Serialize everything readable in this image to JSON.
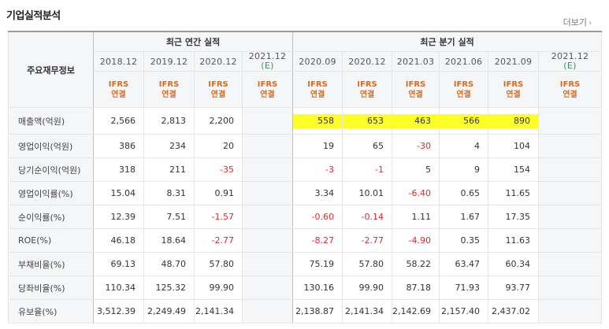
{
  "title": "기업실적분석",
  "more_label": "더보기",
  "header": {
    "corner": "주요재무정보",
    "annual_group": "최근 연간 실적",
    "quarter_group": "최근 분기 실적",
    "periods": [
      {
        "label": "2018.12",
        "est": ""
      },
      {
        "label": "2019.12",
        "est": ""
      },
      {
        "label": "2020.12",
        "est": ""
      },
      {
        "label": "2021.12",
        "est": "(E)"
      },
      {
        "label": "2020.09",
        "est": ""
      },
      {
        "label": "2020.12",
        "est": ""
      },
      {
        "label": "2021.03",
        "est": ""
      },
      {
        "label": "2021.06",
        "est": ""
      },
      {
        "label": "2021.09",
        "est": ""
      },
      {
        "label": "2021.12",
        "est": "(E)"
      }
    ],
    "basis_line1": "IFRS",
    "basis_line2": "연결"
  },
  "rows": [
    {
      "label": "매출액(억원)",
      "values": [
        "2,566",
        "2,813",
        "2,200",
        "",
        "558",
        "653",
        "463",
        "566",
        "890",
        ""
      ]
    },
    {
      "label": "영업이익(억원)",
      "values": [
        "386",
        "234",
        "20",
        "",
        "19",
        "65",
        "-30",
        "4",
        "104",
        ""
      ]
    },
    {
      "label": "당기순이익(억원)",
      "values": [
        "318",
        "211",
        "-35",
        "",
        "-3",
        "-1",
        "5",
        "9",
        "154",
        ""
      ]
    },
    {
      "label": "영업이익률(%)",
      "values": [
        "15.04",
        "8.31",
        "0.91",
        "",
        "3.34",
        "10.01",
        "-6.40",
        "0.65",
        "11.65",
        ""
      ]
    },
    {
      "label": "순이익률(%)",
      "values": [
        "12.39",
        "7.51",
        "-1.57",
        "",
        "-0.60",
        "-0.14",
        "1.11",
        "1.67",
        "17.35",
        ""
      ]
    },
    {
      "label": "ROE(%)",
      "values": [
        "46.18",
        "18.64",
        "-2.77",
        "",
        "-8.27",
        "-2.77",
        "-4.90",
        "0.35",
        "11.63",
        ""
      ]
    },
    {
      "label": "부채비율(%)",
      "values": [
        "69.13",
        "48.70",
        "57.80",
        "",
        "75.19",
        "57.80",
        "58.22",
        "63.47",
        "60.34",
        ""
      ]
    },
    {
      "label": "당좌비율(%)",
      "values": [
        "110.34",
        "125.32",
        "99.90",
        "",
        "130.16",
        "99.90",
        "87.18",
        "71.93",
        "93.77",
        ""
      ]
    },
    {
      "label": "유보율(%)",
      "values": [
        "3,512.39",
        "2,249.49",
        "2,141.34",
        "",
        "2,138.87",
        "2,141.34",
        "2,142.69",
        "2,157.40",
        "2,437.02",
        ""
      ]
    }
  ],
  "colors": {
    "negative": "#e0292b",
    "estimate": "#2a9c5a",
    "basis": "#e06a1b",
    "highlight": "#ffff27"
  }
}
